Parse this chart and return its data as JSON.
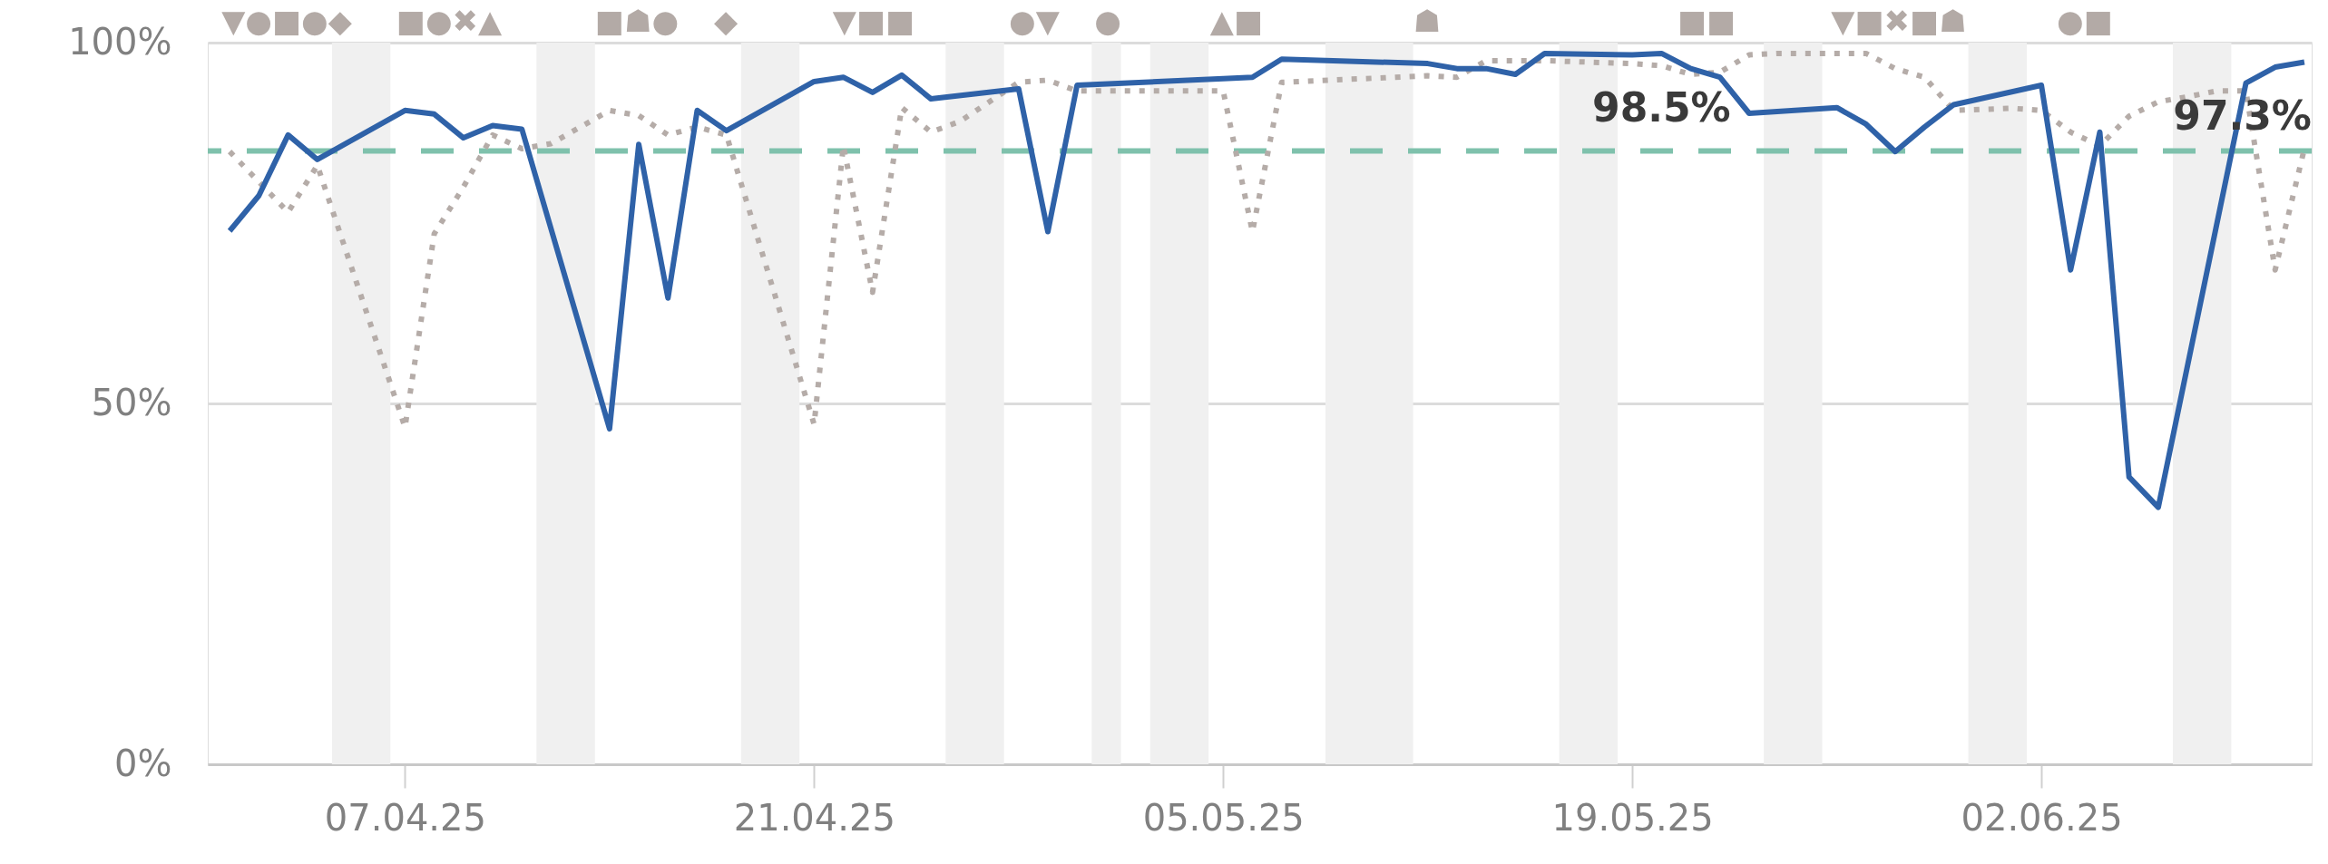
{
  "chart_data": {
    "type": "line",
    "xlim": [
      "2025-03-31T06:00",
      "2025-06-11T06:00"
    ],
    "xticks": [
      {
        "value": "2025-04-07",
        "label": "07.04.25"
      },
      {
        "value": "2025-04-21",
        "label": "21.04.25"
      },
      {
        "value": "2025-05-05",
        "label": "05.05.25"
      },
      {
        "value": "2025-05-19",
        "label": "19.05.25"
      },
      {
        "value": "2025-06-02",
        "label": "02.06.25"
      }
    ],
    "ylim": [
      0,
      100
    ],
    "yticks": [
      {
        "value": 0,
        "label": "0%"
      },
      {
        "value": 50,
        "label": "50%"
      },
      {
        "value": 100,
        "label": "100%"
      }
    ],
    "grid": "y",
    "series": [
      {
        "color": "#b5aca8",
        "line_style": "dotted",
        "x": [
          "2025-04-01",
          "2025-04-03",
          "2025-04-04",
          "2025-04-07",
          "2025-04-08",
          "2025-04-09",
          "2025-04-10",
          "2025-04-11",
          "2025-04-12",
          "2025-04-13",
          "2025-04-14",
          "2025-04-15",
          "2025-04-16",
          "2025-04-17",
          "2025-04-18",
          "2025-04-21",
          "2025-04-22",
          "2025-04-23",
          "2025-04-24",
          "2025-04-25",
          "2025-04-26",
          "2025-04-27",
          "2025-04-28",
          "2025-04-29",
          "2025-04-30",
          "2025-05-05",
          "2025-05-06",
          "2025-05-07",
          "2025-05-12",
          "2025-05-13",
          "2025-05-14",
          "2025-05-16",
          "2025-05-19",
          "2025-05-20",
          "2025-05-21",
          "2025-05-22",
          "2025-05-23",
          "2025-05-24",
          "2025-05-27",
          "2025-05-28",
          "2025-05-29",
          "2025-05-30",
          "2025-06-01",
          "2025-06-02",
          "2025-06-03",
          "2025-06-04",
          "2025-06-05",
          "2025-06-06",
          "2025-06-07",
          "2025-06-08",
          "2025-06-09",
          "2025-06-10",
          "2025-06-11"
        ],
        "values": [
          84.9,
          76.5,
          83.0,
          46.7,
          73.5,
          80.0,
          87.2,
          85.3,
          86.0,
          88.3,
          90.6,
          89.9,
          87.2,
          88.3,
          87.2,
          47.1,
          85.7,
          65.4,
          91.0,
          87.6,
          89.1,
          91.8,
          94.5,
          94.8,
          93.3,
          93.3,
          73.8,
          94.5,
          95.4,
          95.2,
          97.5,
          97.5,
          97.1,
          96.8,
          95.6,
          95.9,
          98.3,
          98.5,
          98.5,
          96.4,
          95.2,
          90.6,
          90.9,
          90.6,
          87.6,
          85.7,
          89.8,
          91.8,
          92.5,
          93.3,
          93.3,
          68.5,
          85.3
        ]
      },
      {
        "color": "#2f62a8",
        "line_style": "solid",
        "x": [
          "2025-04-01",
          "2025-04-02",
          "2025-04-03",
          "2025-04-04",
          "2025-04-07",
          "2025-04-08",
          "2025-04-09",
          "2025-04-10",
          "2025-04-11",
          "2025-04-14",
          "2025-04-15",
          "2025-04-16",
          "2025-04-17",
          "2025-04-18",
          "2025-04-21",
          "2025-04-22",
          "2025-04-23",
          "2025-04-24",
          "2025-04-25",
          "2025-04-28",
          "2025-04-29",
          "2025-04-30",
          "2025-05-05",
          "2025-05-06",
          "2025-05-07",
          "2025-05-12",
          "2025-05-13",
          "2025-05-14",
          "2025-05-15",
          "2025-05-16",
          "2025-05-19",
          "2025-05-20",
          "2025-05-21",
          "2025-05-22",
          "2025-05-23",
          "2025-05-26",
          "2025-05-27",
          "2025-05-28",
          "2025-05-29",
          "2025-05-30",
          "2025-06-02",
          "2025-06-03",
          "2025-06-04",
          "2025-06-05",
          "2025-06-06",
          "2025-06-09",
          "2025-06-10",
          "2025-06-11"
        ],
        "values": [
          73.9,
          78.8,
          87.2,
          83.8,
          90.6,
          90.1,
          86.8,
          88.5,
          88.0,
          46.5,
          85.9,
          64.6,
          90.6,
          87.8,
          94.6,
          95.2,
          93.1,
          95.5,
          92.2,
          93.6,
          73.8,
          94.1,
          95.0,
          95.2,
          97.7,
          97.1,
          96.4,
          96.4,
          95.6,
          98.5,
          98.3,
          98.5,
          96.4,
          95.2,
          90.2,
          91.0,
          88.7,
          84.9,
          88.3,
          91.4,
          94.1,
          68.5,
          87.6,
          39.8,
          35.6,
          94.4,
          96.6,
          97.3
        ],
        "value_labels": [
          null,
          null,
          null,
          null,
          null,
          null,
          null,
          null,
          null,
          null,
          null,
          null,
          null,
          null,
          null,
          null,
          null,
          null,
          null,
          null,
          null,
          null,
          null,
          null,
          null,
          null,
          null,
          null,
          null,
          null,
          null,
          "98.5%",
          null,
          null,
          null,
          null,
          null,
          null,
          null,
          null,
          null,
          null,
          null,
          null,
          null,
          null,
          null,
          "97.3%"
        ]
      }
    ],
    "ref_lines": [
      {
        "axis": "y",
        "value": 85,
        "color": "#7fc1ac",
        "line_style": "dashed"
      }
    ],
    "bands": [
      {
        "axis": "x",
        "from": "2025-04-04T12:00",
        "to": "2025-04-06T12:00",
        "color": "#f0f0f0"
      },
      {
        "axis": "x",
        "from": "2025-04-11T12:00",
        "to": "2025-04-13T12:00",
        "color": "#f0f0f0"
      },
      {
        "axis": "x",
        "from": "2025-04-18T12:00",
        "to": "2025-04-20T12:00",
        "color": "#f0f0f0"
      },
      {
        "axis": "x",
        "from": "2025-04-25T12:00",
        "to": "2025-04-27T12:00",
        "color": "#f0f0f0"
      },
      {
        "axis": "x",
        "from": "2025-04-30T12:00",
        "to": "2025-05-01T12:00",
        "color": "#f0f0f0"
      },
      {
        "axis": "x",
        "from": "2025-05-02T12:00",
        "to": "2025-05-04T12:00",
        "color": "#f0f0f0"
      },
      {
        "axis": "x",
        "from": "2025-05-08T12:00",
        "to": "2025-05-11T12:00",
        "color": "#f0f0f0"
      },
      {
        "axis": "x",
        "from": "2025-05-16T12:00",
        "to": "2025-05-18T12:00",
        "color": "#f0f0f0"
      },
      {
        "axis": "x",
        "from": "2025-05-23T12:00",
        "to": "2025-05-25T12:00",
        "color": "#f0f0f0"
      },
      {
        "axis": "x",
        "from": "2025-05-30T12:00",
        "to": "2025-06-01T12:00",
        "color": "#f0f0f0"
      },
      {
        "axis": "x",
        "from": "2025-06-06T12:00",
        "to": "2025-06-08T12:00",
        "color": "#f0f0f0"
      }
    ],
    "annotations": [
      "▼●■●◆",
      "■●✖▲",
      "■☗●",
      "◆",
      "▼■■",
      "●▼",
      "●",
      "▲■",
      "☗",
      "■■",
      "▼■✖■☗",
      "●■"
    ]
  }
}
